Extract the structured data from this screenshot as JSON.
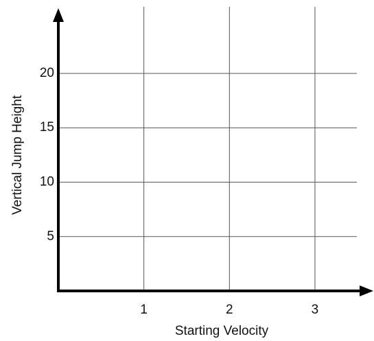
{
  "chart_data": {
    "type": "line",
    "x_label": "Starting Velocity",
    "y_label": "Vertical Jump Height",
    "xlim": [
      0,
      3.65
    ],
    "xticks": [
      1,
      2,
      3
    ],
    "ylim": [
      0,
      25.8
    ],
    "yticks": [
      5,
      10,
      15,
      20
    ],
    "grid": true
  }
}
